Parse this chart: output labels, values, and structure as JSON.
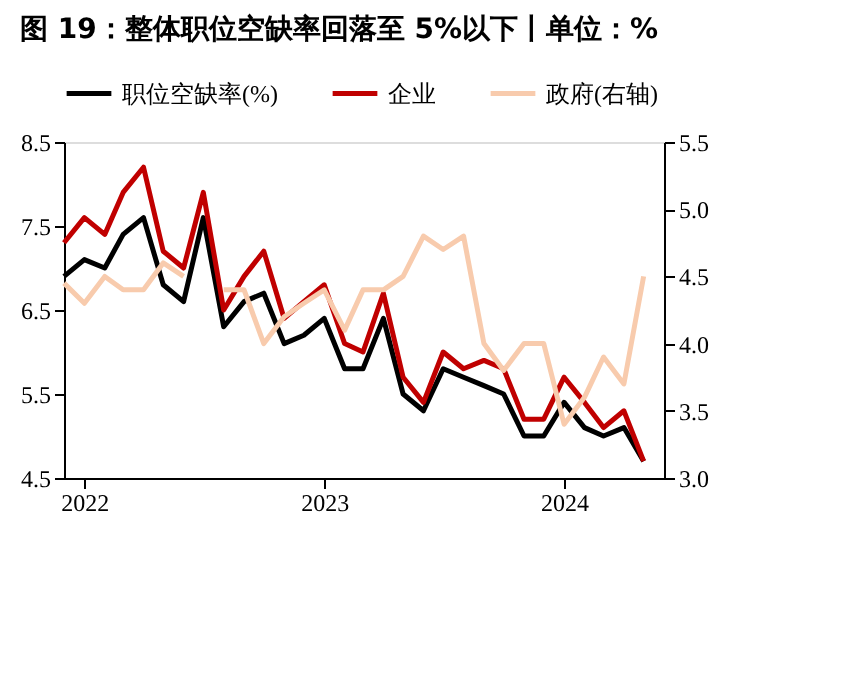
{
  "chart_data": {
    "type": "line",
    "title": "图 19：整体职位空缺率回落至 5%以下丨单位：%",
    "x": [
      "2021-12",
      "2022-01",
      "2022-02",
      "2022-03",
      "2022-04",
      "2022-05",
      "2022-06",
      "2022-07",
      "2022-08",
      "2022-09",
      "2022-10",
      "2022-11",
      "2022-12",
      "2023-01",
      "2023-02",
      "2023-03",
      "2023-04",
      "2023-05",
      "2023-06",
      "2023-07",
      "2023-08",
      "2023-09",
      "2023-10",
      "2023-11",
      "2023-12",
      "2024-01",
      "2024-02",
      "2024-03",
      "2024-04",
      "2024-05"
    ],
    "series": [
      {
        "name": "职位空缺率(%)",
        "color": "#000000",
        "values": [
          6.9,
          7.1,
          7.0,
          7.4,
          7.6,
          6.8,
          6.6,
          7.6,
          6.3,
          6.6,
          6.7,
          6.1,
          6.2,
          6.4,
          5.8,
          5.8,
          6.4,
          5.5,
          5.3,
          5.8,
          5.7,
          5.6,
          5.5,
          5.0,
          5.0,
          5.4,
          5.1,
          5.0,
          5.1,
          4.7
        ]
      },
      {
        "name": "企业",
        "color": "#c00000",
        "values": [
          7.3,
          7.6,
          7.4,
          7.9,
          8.2,
          7.2,
          7.0,
          7.9,
          6.5,
          6.9,
          7.2,
          6.4,
          6.6,
          6.8,
          6.1,
          6.0,
          6.7,
          5.7,
          5.4,
          6.0,
          5.8,
          5.9,
          5.8,
          5.2,
          5.2,
          5.7,
          5.4,
          5.1,
          5.3,
          4.7
        ]
      },
      {
        "name": "政府(右轴)",
        "color": "#f8cbad",
        "axis": "y2",
        "values": [
          4.45,
          4.3,
          4.5,
          4.4,
          4.4,
          4.6,
          4.5,
          null,
          4.4,
          4.4,
          4.0,
          4.2,
          4.3,
          4.4,
          4.1,
          4.4,
          4.4,
          4.5,
          4.8,
          4.7,
          4.8,
          4.0,
          3.8,
          4.0,
          4.0,
          3.4,
          3.6,
          3.9,
          3.7,
          4.5
        ]
      }
    ],
    "xlim": [
      "2021-12",
      "2024-06"
    ],
    "xticks": [
      {
        "value": "2022-01",
        "label": "2022"
      },
      {
        "value": "2023-01",
        "label": "2023"
      },
      {
        "value": "2024-01",
        "label": "2024"
      }
    ],
    "ylim": [
      4.5,
      8.5
    ],
    "yticks": [
      {
        "value": 4.5,
        "label": "4.5"
      },
      {
        "value": 5.5,
        "label": "5.5"
      },
      {
        "value": 6.5,
        "label": "6.5"
      },
      {
        "value": 7.5,
        "label": "7.5"
      },
      {
        "value": 8.5,
        "label": "8.5"
      }
    ],
    "y2lim": [
      3.0,
      5.5
    ],
    "y2ticks": [
      {
        "value": 3.0,
        "label": "3.0"
      },
      {
        "value": 3.5,
        "label": "3.5"
      },
      {
        "value": 4.0,
        "label": "4.0"
      },
      {
        "value": 4.5,
        "label": "4.5"
      },
      {
        "value": 5.0,
        "label": "5.0"
      },
      {
        "value": 5.5,
        "label": "5.5"
      }
    ],
    "legend": "top",
    "grid": false,
    "marker": "none",
    "line_style": "solid"
  }
}
